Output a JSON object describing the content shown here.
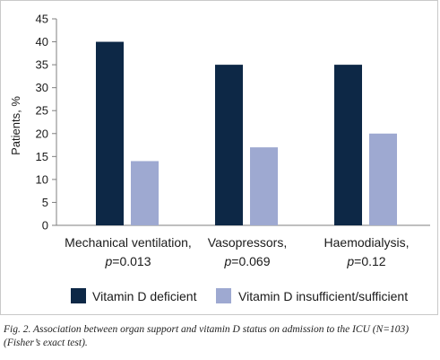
{
  "chart_data": {
    "type": "bar",
    "title": "",
    "ylabel": "Patients, %",
    "xlabel": "",
    "ylim": [
      0,
      45
    ],
    "yticks": [
      0,
      5,
      10,
      15,
      20,
      25,
      30,
      35,
      40,
      45
    ],
    "grid": false,
    "legend_position": "bottom",
    "categories": [
      {
        "line1": "Mechanical ventilation,",
        "p_prefix": "p",
        "p_value": "=0.013"
      },
      {
        "line1": "Vasopressors,",
        "p_prefix": "p",
        "p_value": "=0.069"
      },
      {
        "line1": "Haemodialysis,",
        "p_prefix": "p",
        "p_value": "=0.12"
      }
    ],
    "series": [
      {
        "name": "Vitamin D deficient",
        "color": "#0d2846",
        "values": [
          40,
          35,
          35
        ]
      },
      {
        "name": "Vitamin D insufficient/sufficient",
        "color": "#9ea9d1",
        "values": [
          14,
          17,
          20
        ]
      }
    ]
  },
  "caption": "Fig. 2. Association between organ support and vitamin D status on admission to the ICU (N=103) (Fisher’s exact test)."
}
